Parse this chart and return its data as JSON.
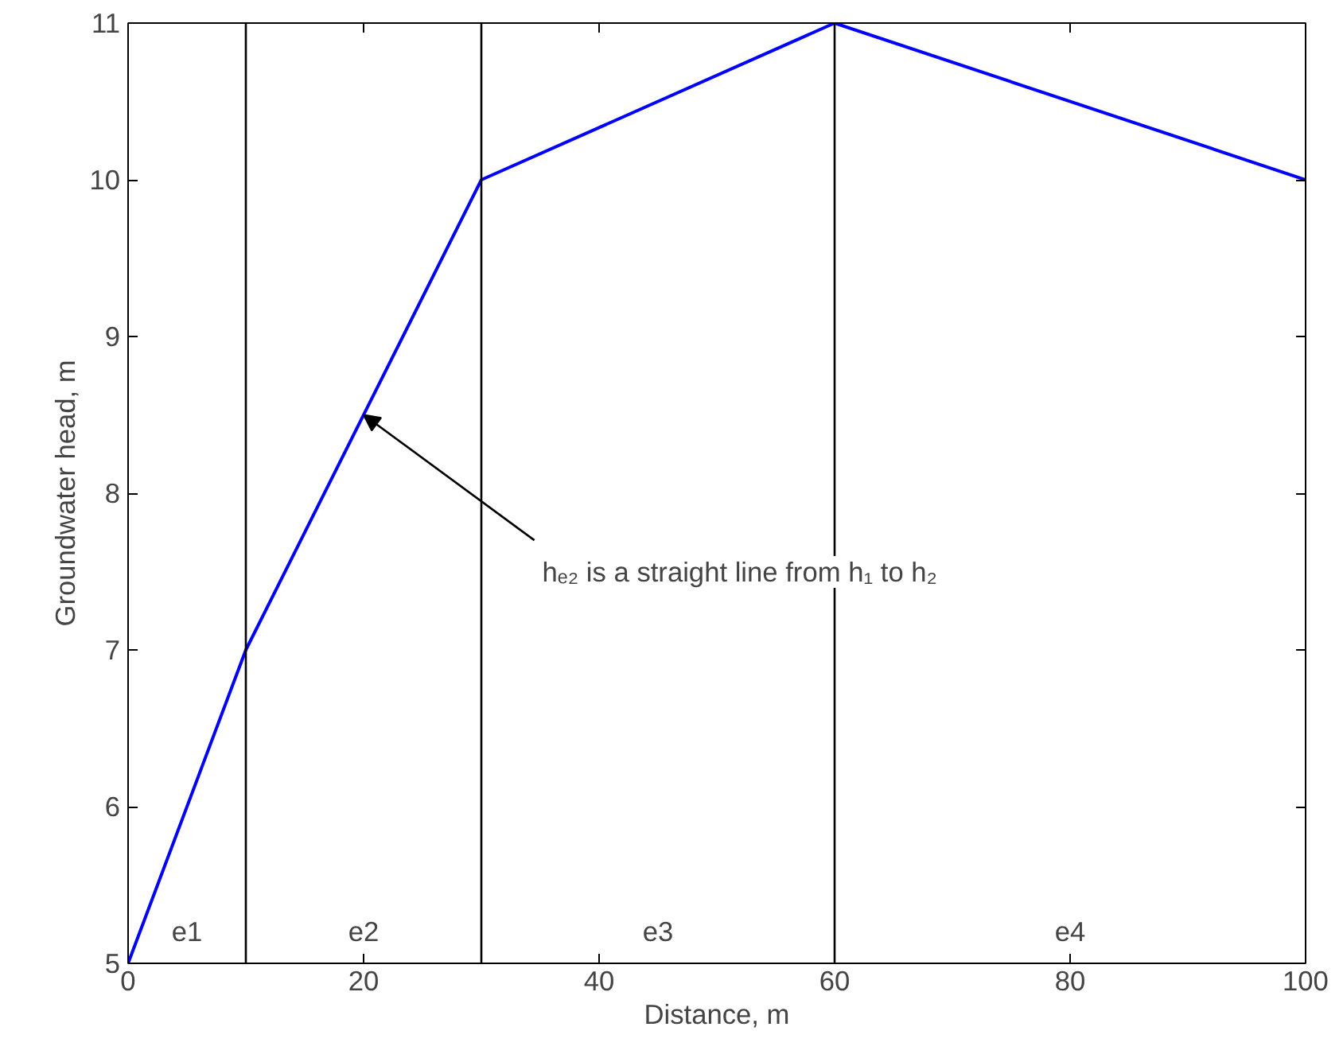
{
  "chart_data": {
    "type": "line",
    "xlabel": "Distance, m",
    "ylabel": "Groundwater head, m",
    "x": [
      0,
      10,
      30,
      60,
      100
    ],
    "series": [
      {
        "color": "#0000ff",
        "values": [
          5,
          7,
          10,
          11,
          10
        ]
      }
    ],
    "xlim": [
      0,
      100
    ],
    "xticks": [
      0,
      20,
      40,
      60,
      80,
      100
    ],
    "ylim": [
      5,
      11
    ],
    "yticks": [
      5,
      6,
      7,
      8,
      9,
      10,
      11
    ],
    "ref_lines": [
      {
        "axis": "x",
        "value": 10,
        "color": "#000000"
      },
      {
        "axis": "x",
        "value": 30,
        "color": "#000000"
      },
      {
        "axis": "x",
        "value": 60,
        "color": "#000000"
      }
    ],
    "annotations": [
      "e1",
      "e2",
      "e3",
      "e4",
      {
        "text": "hₑ₂ is a straight line from h₁ to h₂",
        "x": 20,
        "y": 8.5
      }
    ],
    "grid": false,
    "marker": "none",
    "line_style": "solid"
  }
}
